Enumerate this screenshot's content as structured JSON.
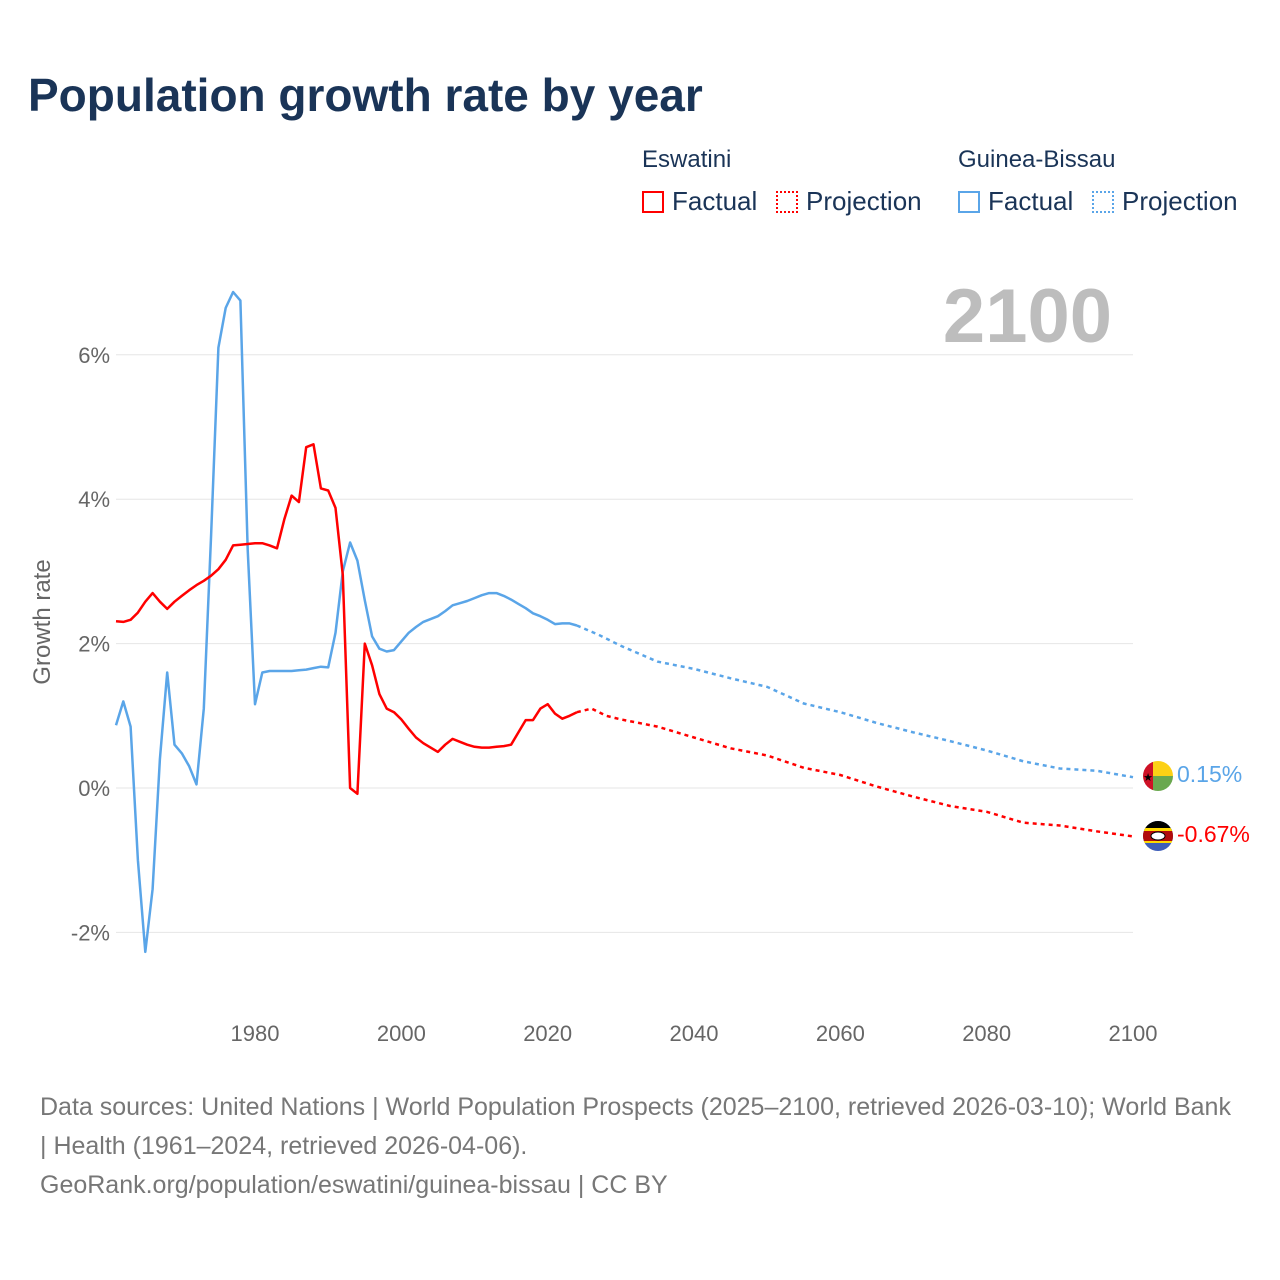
{
  "chart_data": {
    "type": "line",
    "title": "Population growth rate by year",
    "ylabel": "Growth rate",
    "xlabel": "",
    "xlim": [
      1961,
      2100
    ],
    "ylim": [
      -3,
      7
    ],
    "x_ticks": [
      1980,
      2000,
      2020,
      2040,
      2060,
      2080,
      2100
    ],
    "x_tick_labels": [
      "1980",
      "2000",
      "2020",
      "2040",
      "2060",
      "2080",
      "2100"
    ],
    "y_ticks": [
      -2,
      0,
      2,
      4,
      6
    ],
    "y_tick_labels": [
      "-2%",
      "0%",
      "2%",
      "4%",
      "6%"
    ],
    "grid": true,
    "year_label": "2100",
    "legend_position": "top-right",
    "legend": {
      "groups": [
        {
          "name": "Eswatini",
          "factual": "Factual",
          "projection": "Projection"
        },
        {
          "name": "Guinea-Bissau",
          "factual": "Factual",
          "projection": "Projection"
        }
      ]
    },
    "series": [
      {
        "name": "Eswatini",
        "color": "#ff0000",
        "end_label": "-0.67%",
        "factual": {
          "x": [
            1961,
            1962,
            1963,
            1964,
            1965,
            1966,
            1967,
            1968,
            1969,
            1970,
            1971,
            1972,
            1973,
            1974,
            1975,
            1976,
            1977,
            1978,
            1979,
            1980,
            1981,
            1982,
            1983,
            1984,
            1985,
            1986,
            1987,
            1988,
            1989,
            1990,
            1991,
            1992,
            1993,
            1994,
            1995,
            1996,
            1997,
            1998,
            1999,
            2000,
            2001,
            2002,
            2003,
            2004,
            2005,
            2006,
            2007,
            2008,
            2009,
            2010,
            2011,
            2012,
            2013,
            2014,
            2015,
            2016,
            2017,
            2018,
            2019,
            2020,
            2021,
            2022,
            2023,
            2024
          ],
          "y": [
            2.31,
            2.3,
            2.33,
            2.43,
            2.58,
            2.7,
            2.58,
            2.48,
            2.58,
            2.66,
            2.74,
            2.81,
            2.87,
            2.94,
            3.03,
            3.16,
            3.36,
            3.37,
            3.38,
            3.39,
            3.39,
            3.36,
            3.32,
            3.72,
            4.05,
            3.96,
            4.72,
            4.76,
            4.15,
            4.12,
            3.88,
            2.95,
            0.0,
            -0.08,
            2.0,
            1.7,
            1.3,
            1.1,
            1.05,
            0.95,
            0.82,
            0.7,
            0.62,
            0.56,
            0.5,
            0.6,
            0.68,
            0.64,
            0.6,
            0.57,
            0.56,
            0.56,
            0.57,
            0.58,
            0.6,
            0.77,
            0.94,
            0.94,
            1.1,
            1.16,
            1.03,
            0.96,
            1.0,
            1.05
          ]
        },
        "projection": {
          "x": [
            2024,
            2026,
            2028,
            2030,
            2035,
            2040,
            2045,
            2050,
            2055,
            2060,
            2065,
            2070,
            2075,
            2080,
            2085,
            2090,
            2095,
            2100
          ],
          "y": [
            1.05,
            1.1,
            1.0,
            0.95,
            0.85,
            0.7,
            0.55,
            0.45,
            0.28,
            0.18,
            0.02,
            -0.12,
            -0.25,
            -0.33,
            -0.48,
            -0.52,
            -0.6,
            -0.67
          ]
        }
      },
      {
        "name": "Guinea-Bissau",
        "color": "#5aa5e8",
        "end_label": "0.15%",
        "factual": {
          "x": [
            1961,
            1962,
            1963,
            1964,
            1965,
            1966,
            1967,
            1968,
            1969,
            1970,
            1971,
            1972,
            1973,
            1974,
            1975,
            1976,
            1977,
            1978,
            1979,
            1980,
            1981,
            1982,
            1983,
            1984,
            1985,
            1986,
            1987,
            1988,
            1989,
            1990,
            1991,
            1992,
            1993,
            1994,
            1995,
            1996,
            1997,
            1998,
            1999,
            2000,
            2001,
            2002,
            2003,
            2004,
            2005,
            2006,
            2007,
            2008,
            2009,
            2010,
            2011,
            2012,
            2013,
            2014,
            2015,
            2016,
            2017,
            2018,
            2019,
            2020,
            2021,
            2022,
            2023,
            2024
          ],
          "y": [
            0.87,
            1.2,
            0.85,
            -1.0,
            -2.27,
            -1.4,
            0.4,
            1.6,
            0.6,
            0.48,
            0.3,
            0.05,
            1.1,
            3.5,
            6.1,
            6.65,
            6.87,
            6.75,
            3.3,
            1.16,
            1.6,
            1.62,
            1.62,
            1.62,
            1.62,
            1.63,
            1.64,
            1.66,
            1.68,
            1.67,
            2.15,
            3.0,
            3.4,
            3.15,
            2.6,
            2.1,
            1.93,
            1.89,
            1.91,
            2.03,
            2.15,
            2.23,
            2.3,
            2.34,
            2.38,
            2.45,
            2.53,
            2.56,
            2.59,
            2.63,
            2.67,
            2.7,
            2.7,
            2.66,
            2.61,
            2.55,
            2.49,
            2.42,
            2.38,
            2.33,
            2.27,
            2.28,
            2.28,
            2.25
          ]
        },
        "projection": {
          "x": [
            2024,
            2027,
            2030,
            2035,
            2040,
            2045,
            2050,
            2055,
            2060,
            2065,
            2070,
            2075,
            2080,
            2085,
            2090,
            2095,
            2100
          ],
          "y": [
            2.25,
            2.12,
            1.97,
            1.75,
            1.65,
            1.52,
            1.4,
            1.17,
            1.05,
            0.9,
            0.77,
            0.65,
            0.52,
            0.37,
            0.27,
            0.24,
            0.15
          ]
        }
      }
    ],
    "footer": {
      "sources": "Data sources: United Nations | World Population Prospects (2025–2100, retrieved 2026-03-10); World Bank | Health (1961–2024, retrieved 2026-04-06).",
      "link": "GeoRank.org/population/eswatini/guinea-bissau | CC BY"
    }
  }
}
